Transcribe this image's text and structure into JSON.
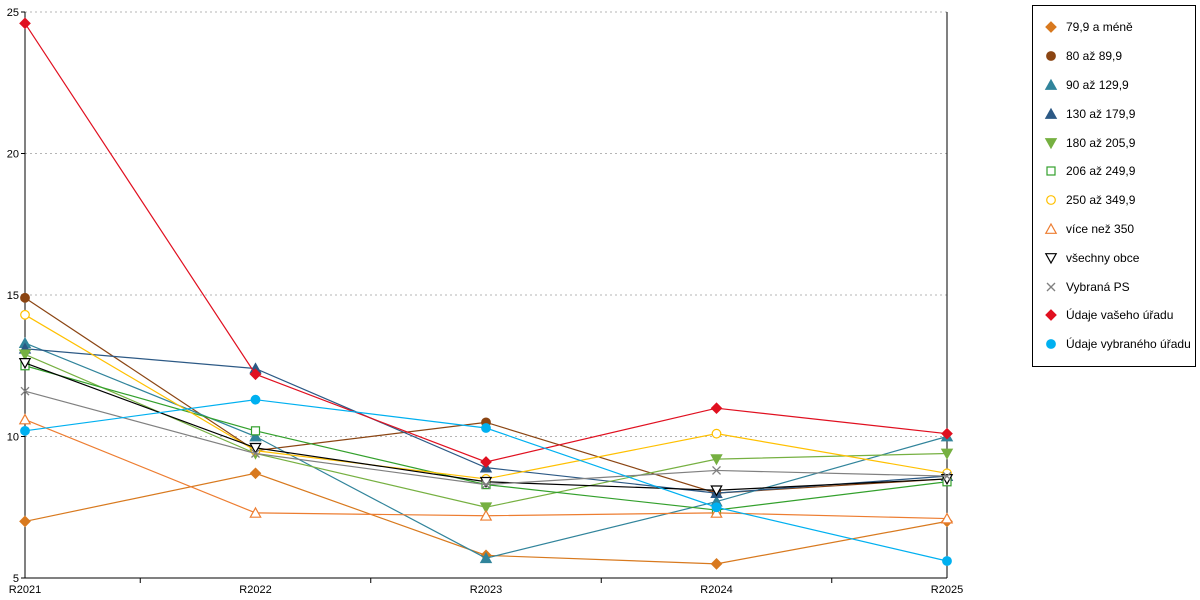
{
  "chart_data": {
    "type": "line",
    "title": "",
    "xlabel": "",
    "ylabel": "",
    "categories": [
      "R2021",
      "R2022",
      "R2023",
      "R2024",
      "R2025"
    ],
    "ylim": [
      5,
      25
    ],
    "yticks": [
      5,
      10,
      15,
      20,
      25
    ],
    "grid": "horizontal-dotted",
    "legend_position": "right",
    "colors": {
      "grid": "#b5b5b5",
      "axis": "#000000",
      "background": "#ffffff"
    },
    "series": [
      {
        "name": "79,9 a méně",
        "color": "#d8791e",
        "marker": "diamond",
        "fill": "solid",
        "values": [
          7.0,
          8.7,
          5.8,
          5.5,
          7.0
        ]
      },
      {
        "name": "80 až 89,9",
        "color": "#8b4513",
        "marker": "circle",
        "fill": "solid",
        "values": [
          14.9,
          9.5,
          10.5,
          8.0,
          8.5
        ]
      },
      {
        "name": "90 až 129,9",
        "color": "#31849b",
        "marker": "triangle-up",
        "fill": "solid",
        "values": [
          13.3,
          10.0,
          5.7,
          7.7,
          10.0
        ]
      },
      {
        "name": "130 až 179,9",
        "color": "#2c5985",
        "marker": "triangle-up",
        "fill": "solid",
        "values": [
          13.1,
          12.4,
          8.9,
          8.0,
          8.6
        ]
      },
      {
        "name": "180 až 205,9",
        "color": "#76b041",
        "marker": "triangle-down",
        "fill": "solid",
        "values": [
          12.9,
          9.4,
          7.5,
          9.2,
          9.4
        ]
      },
      {
        "name": "206 až 249,9",
        "color": "#33a02c",
        "marker": "square",
        "fill": "open",
        "values": [
          12.5,
          10.2,
          8.3,
          7.4,
          8.4
        ]
      },
      {
        "name": "250 až 349,9",
        "color": "#ffc000",
        "marker": "circle",
        "fill": "open",
        "values": [
          14.3,
          9.5,
          8.5,
          10.1,
          8.7
        ]
      },
      {
        "name": "více než 350",
        "color": "#ed7d31",
        "marker": "triangle-up",
        "fill": "open",
        "values": [
          10.6,
          7.3,
          7.2,
          7.3,
          7.1
        ]
      },
      {
        "name": "všechny obce",
        "color": "#000000",
        "marker": "triangle-down",
        "fill": "open",
        "values": [
          12.6,
          9.6,
          8.4,
          8.1,
          8.5
        ]
      },
      {
        "name": "Vybraná PS",
        "color": "#808080",
        "marker": "x",
        "fill": "open",
        "values": [
          11.6,
          9.4,
          8.3,
          8.8,
          8.6
        ]
      },
      {
        "name": "Údaje vašeho úřadu",
        "color": "#e01020",
        "marker": "diamond",
        "fill": "solid",
        "values": [
          24.6,
          12.2,
          9.1,
          11.0,
          10.1
        ]
      },
      {
        "name": "Údaje vybraného úřadu",
        "color": "#00b0f0",
        "marker": "circle",
        "fill": "solid",
        "values": [
          10.2,
          11.3,
          10.3,
          7.5,
          5.6
        ]
      }
    ]
  }
}
